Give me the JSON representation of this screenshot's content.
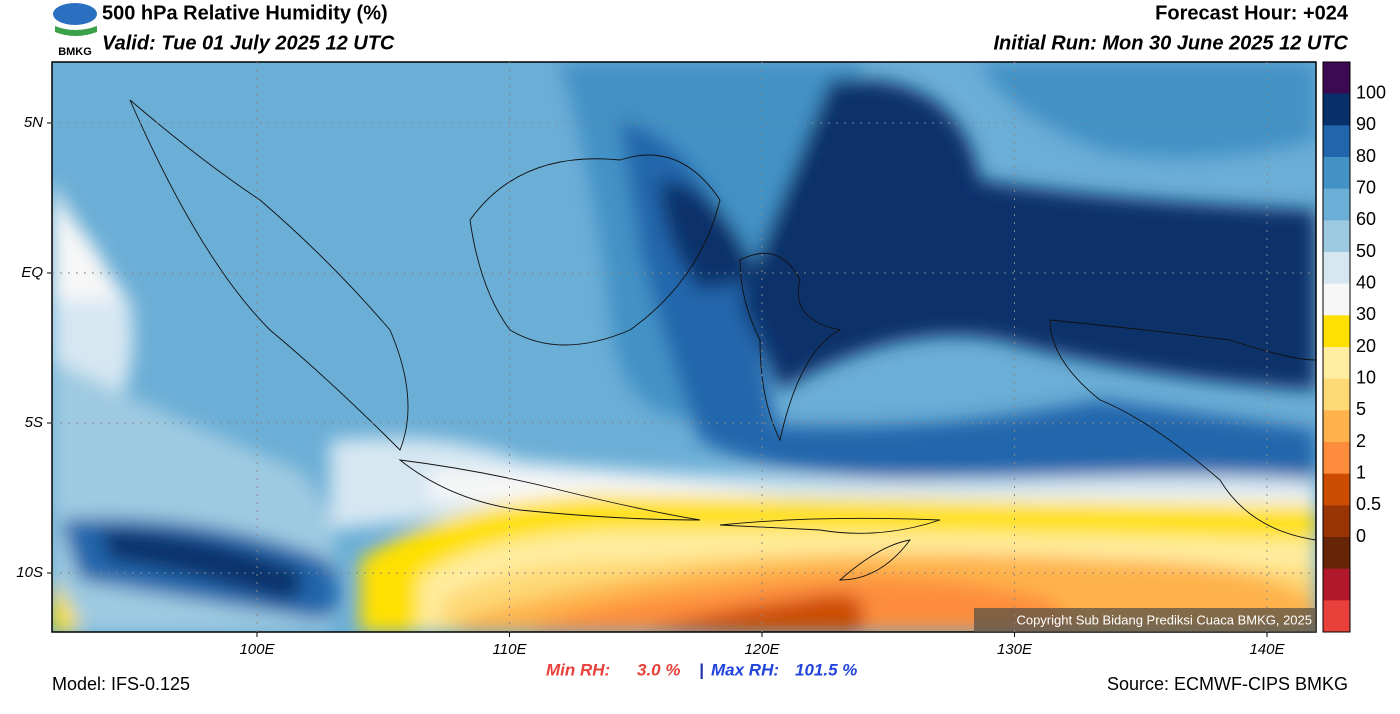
{
  "header": {
    "title": "500 hPa Relative Humidity (%)",
    "valid": "Valid: Tue 01 July 2025 12 UTC",
    "forecast_hour": "Forecast Hour: +024",
    "initial_run": "Initial Run: Mon 30 June 2025 12 UTC",
    "logo": "BMKG"
  },
  "map": {
    "lon_labels": [
      "100E",
      "110E",
      "120E",
      "130E",
      "140E"
    ],
    "lat_labels": [
      "5N",
      "EQ",
      "5S",
      "10S"
    ],
    "copyright": "Copyright Sub Bidang Prediksi Cuaca BMKG, 2025"
  },
  "colorbar": {
    "levels": [
      100,
      90,
      80,
      70,
      60,
      50,
      40,
      30,
      20,
      10,
      5,
      2,
      1,
      0.5,
      0
    ],
    "colors": [
      "#3b0a52",
      "#08306b",
      "#2166ac",
      "#4292c6",
      "#6baed6",
      "#9ecae1",
      "#d6e7f2",
      "#f7f7f7",
      "#ffe000",
      "#ffeda0",
      "#fed976",
      "#feb24c",
      "#fd8d3c",
      "#cc4c02",
      "#993404",
      "#662506",
      "#b2182b",
      "#e8403a"
    ]
  },
  "footer": {
    "model": "Model: IFS-0.125",
    "min_label": "Min RH:",
    "min_value": "3.0 %",
    "separator": "|",
    "max_label": "Max RH:",
    "max_value": "101.5 %",
    "source": "Source: ECMWF-CIPS BMKG"
  }
}
